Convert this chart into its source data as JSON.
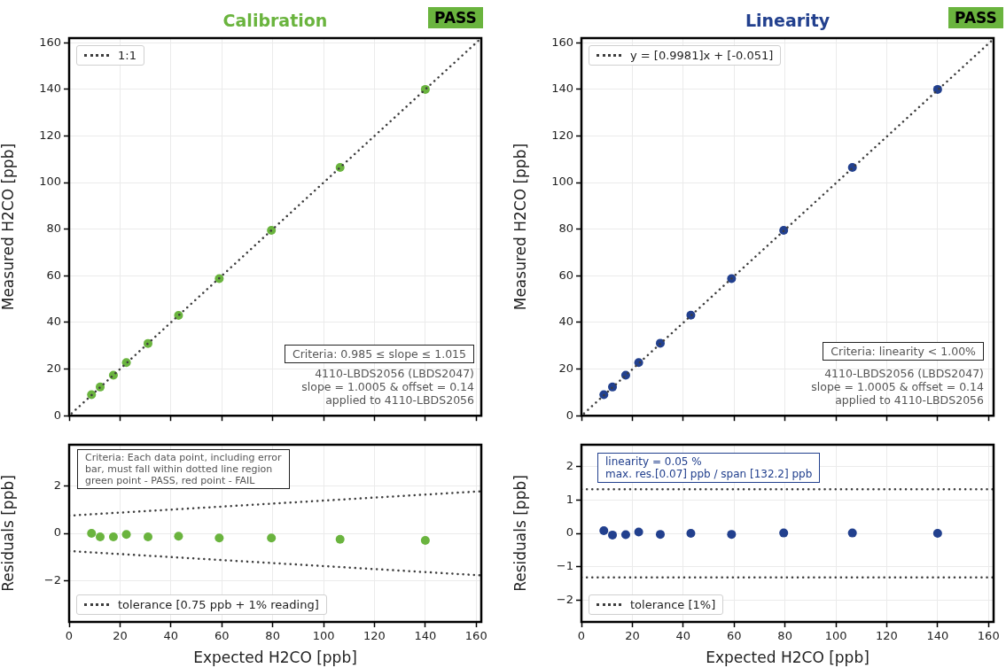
{
  "chart_data": [
    {
      "type": "scatter",
      "title": "Calibration",
      "ylabel": "Measured H2CO [ppb]",
      "annotations": [
        "PASS",
        "Criteria: 0.985 ≤ slope ≤ 1.015",
        "4110-LBDS2056 (LBDS2047)\nslope = 1.0005 & offset = 0.14\napplied to 4110-LBDS2056"
      ],
      "x": [
        8.8,
        12.2,
        17.4,
        22.5,
        31,
        43,
        59,
        79.5,
        106.5,
        140
      ],
      "marker": "circle",
      "xlim": [
        0,
        162
      ],
      "ylim": [
        0,
        162
      ],
      "xticks": [
        0,
        20,
        40,
        60,
        80,
        100,
        120,
        140,
        160
      ],
      "yticks": [
        0,
        20,
        40,
        60,
        80,
        100,
        120,
        140,
        160
      ],
      "grid": true,
      "legend": "top left",
      "tick_labels": "y",
      "series": [
        {
          "color": "#6ab43e",
          "values": [
            9,
            12.3,
            17.4,
            22.8,
            31,
            43,
            58.8,
            79.5,
            106.5,
            140
          ]
        },
        {
          "type": "line",
          "name": "1:1",
          "color": "#3d3d3d",
          "x": [
            1,
            162
          ],
          "values": [
            1,
            162
          ],
          "line_style": "dotted",
          "marker": "none"
        }
      ]
    },
    {
      "type": "scatter",
      "title": "Linearity",
      "ylabel": "Measured H2CO [ppb]",
      "annotations": [
        "PASS",
        "Criteria: linearity < 1.00%",
        "4110-LBDS2056 (LBDS2047)\nslope = 1.0005 & offset = 0.14\napplied to 4110-LBDS2056"
      ],
      "x": [
        8.8,
        12.2,
        17.4,
        22.5,
        31,
        43,
        59,
        79.5,
        106.5,
        140
      ],
      "marker": "circle",
      "xlim": [
        0,
        162
      ],
      "ylim": [
        0,
        162
      ],
      "xticks": [
        0,
        20,
        40,
        60,
        80,
        100,
        120,
        140,
        160
      ],
      "yticks": [
        0,
        20,
        40,
        60,
        80,
        100,
        120,
        140,
        160
      ],
      "grid": true,
      "legend": "top left",
      "tick_labels": "y",
      "series": [
        {
          "color": "#22408e",
          "values": [
            9,
            12.3,
            17.4,
            22.8,
            31.1,
            43.1,
            58.8,
            79.5,
            106.5,
            140
          ]
        },
        {
          "type": "line",
          "name": "y = [0.9981]x + [-0.051]",
          "color": "#3d3d3d",
          "x": [
            1,
            162
          ],
          "values": [
            0.947,
            161.64
          ],
          "line_style": "dotted",
          "marker": "none"
        }
      ]
    },
    {
      "type": "scatter",
      "xlabel": "Expected H2CO [ppb]",
      "ylabel": "Residuals [ppb]",
      "annotations": [
        "Criteria: Each data point, including error\nbar, must fall within dotted line region\ngreen point - PASS, red point - FAIL"
      ],
      "x": [
        8.8,
        12.2,
        17.4,
        22.5,
        31,
        43,
        59,
        79.5,
        106.5,
        140
      ],
      "marker": "circle",
      "xlim": [
        0,
        162
      ],
      "ylim": [
        -3.75,
        3.75
      ],
      "xticks": [
        0,
        20,
        40,
        60,
        80,
        100,
        120,
        140,
        160
      ],
      "yticks": [
        -2,
        0,
        2
      ],
      "grid": true,
      "legend": "bottom left",
      "series": [
        {
          "color": "#6ab43e",
          "values": [
            0,
            -0.15,
            -0.15,
            -0.05,
            -0.15,
            -0.12,
            -0.2,
            -0.2,
            -0.25,
            -0.3
          ]
        },
        {
          "type": "line",
          "name": "tolerance [0.75 ppb + 1% reading]",
          "color": "#3d3d3d",
          "x": [
            0,
            162
          ],
          "values": [
            0.75,
            1.78
          ],
          "line_style": "dotted",
          "marker": "none"
        },
        {
          "type": "line",
          "color": "#3d3d3d",
          "x": [
            0,
            162
          ],
          "values": [
            -0.75,
            -1.78
          ],
          "line_style": "dotted",
          "marker": "none"
        }
      ]
    },
    {
      "type": "scatter",
      "xlabel": "Expected H2CO [ppb]",
      "ylabel": "Residuals [ppb]",
      "annotations": [
        "linearity = 0.05 %\nmax. res.[0.07] ppb / span [132.2] ppb"
      ],
      "x": [
        8.8,
        12.2,
        17.4,
        22.5,
        31,
        43,
        59,
        79.5,
        106.5,
        140
      ],
      "marker": "circle",
      "xlim": [
        0,
        162
      ],
      "ylim": [
        -2.65,
        2.65
      ],
      "xticks": [
        0,
        20,
        40,
        60,
        80,
        100,
        120,
        140,
        160
      ],
      "yticks": [
        -2,
        -1,
        0,
        1,
        2
      ],
      "grid": true,
      "legend": "bottom left",
      "series": [
        {
          "color": "#22408e",
          "values": [
            0.08,
            -0.05,
            -0.04,
            0.04,
            -0.03,
            0,
            -0.03,
            0.01,
            0.01,
            0
          ]
        },
        {
          "type": "line",
          "name": "tolerance [1%]",
          "color": "#3d3d3d",
          "x": [
            0,
            162
          ],
          "values": [
            1.32,
            1.32
          ],
          "line_style": "dotted",
          "marker": "none"
        },
        {
          "type": "line",
          "color": "#3d3d3d",
          "x": [
            0,
            162
          ],
          "values": [
            -1.32,
            -1.32
          ],
          "line_style": "dotted",
          "marker": "none"
        }
      ]
    }
  ]
}
